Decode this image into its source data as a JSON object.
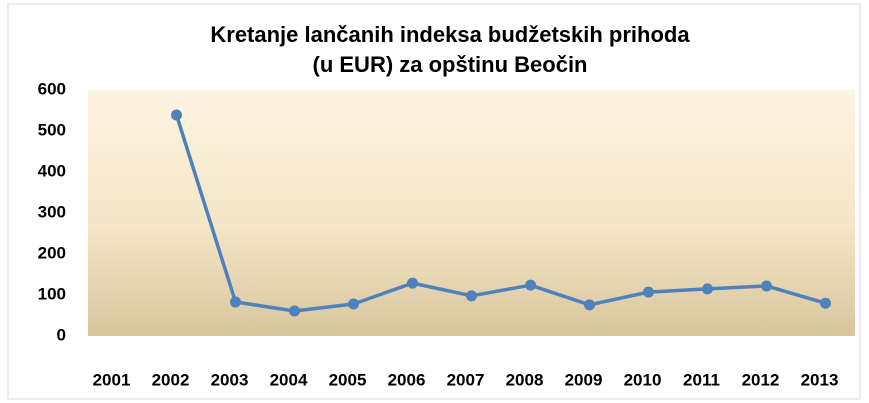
{
  "chart_data": {
    "type": "line",
    "title": [
      "Kretanje lančanih indeksa budžetskih prihoda",
      "(u EUR) za opštinu Beočin"
    ],
    "categories": [
      "2001",
      "2002",
      "2003",
      "2004",
      "2005",
      "2006",
      "2007",
      "2008",
      "2009",
      "2010",
      "2011",
      "2012",
      "2013"
    ],
    "values": [
      null,
      539,
      83,
      61,
      78,
      129,
      98,
      124,
      76,
      107,
      115,
      122,
      80
    ],
    "color": "#4f81bd",
    "ylim": [
      0,
      600
    ],
    "yticks": [
      0,
      100,
      200,
      300,
      400,
      500,
      600
    ],
    "grid": false
  }
}
